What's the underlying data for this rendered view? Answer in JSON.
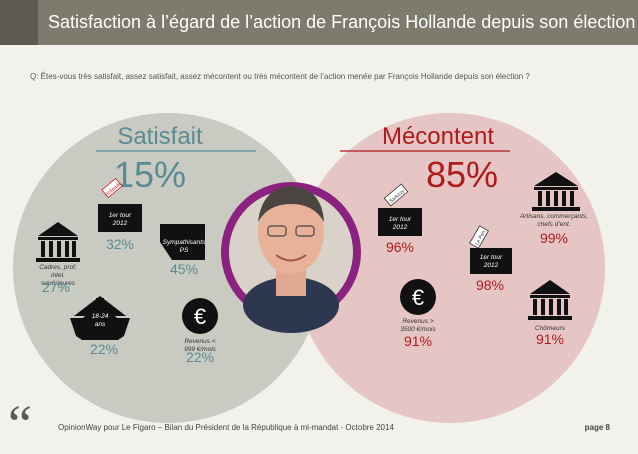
{
  "header": {
    "title": "Satisfaction à l’égard de l’action de François Hollande depuis son élection"
  },
  "question": "Q: Êtes-vous très satisfait, assez satisfait, assez mécontent ou très mécontent de l’action menée par François Hollande depuis son élection ?",
  "colors": {
    "satisfait_circle": "#c9cbc3",
    "mecontent_circle": "#e5c6c4",
    "satisfait_text": "#5a8a93",
    "mecontent_text": "#b01a1c",
    "photo_ring": "#8b2280"
  },
  "chart_data": {
    "type": "venn-infographic",
    "title": "Satisfaction à l’égard de l’action de François Hollande depuis son élection",
    "groups": [
      {
        "name": "Satisfait",
        "total": "15%",
        "segments": [
          {
            "icon": "ballot-box-icon",
            "ballot": "Hollande",
            "label": "1er tour 2012",
            "value": "32%"
          },
          {
            "icon": "building-icon",
            "label": "Cadres, prof. intel. supérieures",
            "value": "27%"
          },
          {
            "icon": "tag-icon",
            "label": "Sympathisants PS",
            "value": "45%"
          },
          {
            "icon": "pagoda-icon",
            "label": "18-24 ans",
            "value": "22%"
          },
          {
            "icon": "euro-icon",
            "label": "Revenus < 999 €/mois",
            "value": "22%"
          }
        ]
      },
      {
        "name": "Mécontent",
        "total": "85%",
        "segments": [
          {
            "icon": "ballot-box-icon",
            "ballot": "Sarkozy",
            "label": "1er tour 2012",
            "value": "96%"
          },
          {
            "icon": "building-icon",
            "label": "Artisans, commerçants, chefs d’ent.",
            "value": "99%"
          },
          {
            "icon": "ballot-box-icon",
            "ballot": "Le Pen",
            "label": "1er tour 2012",
            "value": "98%"
          },
          {
            "icon": "euro-icon",
            "label": "Revenus > 3500 €/mois",
            "value": "91%"
          },
          {
            "icon": "building-icon",
            "label": "Chômeurs",
            "value": "91%"
          }
        ]
      }
    ]
  },
  "footer": {
    "source": "OpinionWay pour Le Figaro – Bilan du Président de la République à mi-mandat - Octobre 2014",
    "page": "page 8",
    "quote_mark": "“"
  }
}
